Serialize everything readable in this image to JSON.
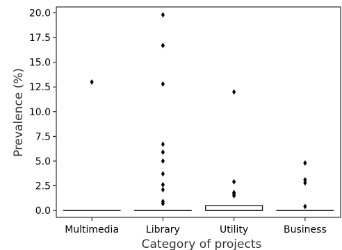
{
  "chart_data": {
    "type": "boxplot",
    "xlabel": "Category of projects",
    "ylabel": "Prevalence (%)",
    "ylim": [
      -0.7,
      20.6
    ],
    "yticks": [
      0.0,
      2.5,
      5.0,
      7.5,
      10.0,
      12.5,
      15.0,
      17.5,
      20.0
    ],
    "ytick_labels": [
      "0.0",
      "2.5",
      "5.0",
      "7.5",
      "10.0",
      "12.5",
      "15.0",
      "17.5",
      "20.0"
    ],
    "grid": false,
    "categories": [
      "Multimedia",
      "Library",
      "Utility",
      "Business"
    ],
    "boxes": [
      {
        "q1": 0.0,
        "median": 0.0,
        "q3": 0.0,
        "whisker_low": 0.0,
        "whisker_high": 0.0,
        "outliers": [
          13.0
        ]
      },
      {
        "q1": 0.0,
        "median": 0.0,
        "q3": 0.0,
        "whisker_low": 0.0,
        "whisker_high": 0.0,
        "outliers": [
          0.7,
          0.9,
          2.1,
          2.6,
          3.7,
          5.0,
          5.9,
          6.7,
          12.8,
          16.7,
          19.8
        ]
      },
      {
        "q1": 0.0,
        "median": 0.0,
        "q3": 0.5,
        "whisker_low": 0.0,
        "whisker_high": 0.5,
        "outliers": [
          1.5,
          1.7,
          1.8,
          2.9,
          12.0
        ]
      },
      {
        "q1": 0.0,
        "median": 0.0,
        "q3": 0.0,
        "whisker_low": 0.0,
        "whisker_high": 0.0,
        "outliers": [
          0.4,
          2.8,
          3.1,
          4.8
        ]
      }
    ]
  }
}
